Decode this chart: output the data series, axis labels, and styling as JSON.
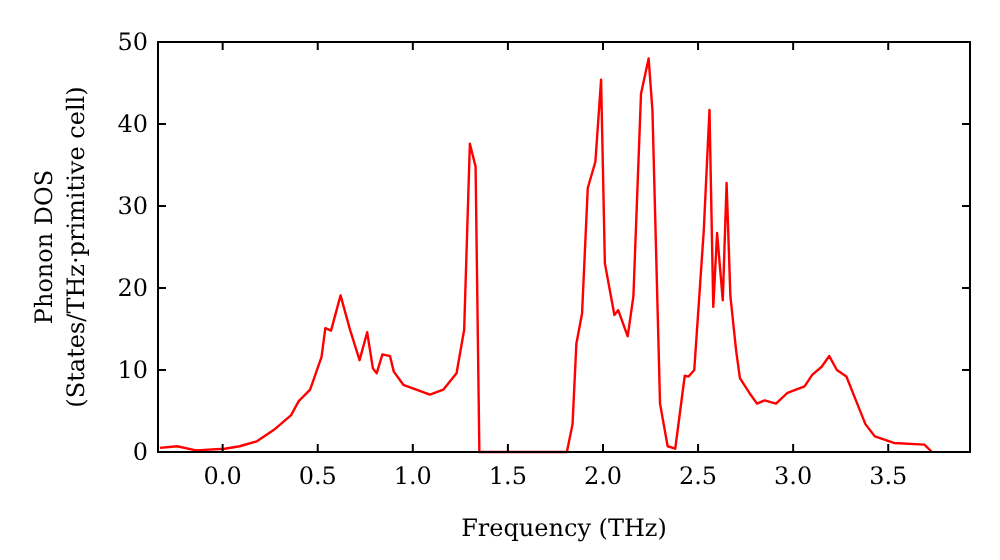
{
  "chart_data": {
    "type": "line",
    "xlabel": "Frequency (THz)",
    "ylabel": "Phonon DOS\n(States/THz·primitive cell)",
    "xlim": [
      -0.34,
      3.93
    ],
    "ylim": [
      0,
      50
    ],
    "xticks": [
      {
        "value": 0,
        "label": "0.0"
      },
      {
        "value": 0.5,
        "label": "0.5"
      },
      {
        "value": 1,
        "label": "1.0"
      },
      {
        "value": 1.5,
        "label": "1.5"
      },
      {
        "value": 2,
        "label": "2.0"
      },
      {
        "value": 2.5,
        "label": "2.5"
      },
      {
        "value": 3,
        "label": "3.0"
      },
      {
        "value": 3.5,
        "label": "3.5"
      }
    ],
    "yticks": [
      0,
      10,
      20,
      30,
      40,
      50
    ],
    "grid": false,
    "series": [
      {
        "color": "#ff0000",
        "x": [
          -0.33,
          -0.24,
          -0.14,
          0.01,
          0.09,
          0.18,
          0.27,
          0.36,
          0.4,
          0.46,
          0.52,
          0.54,
          0.57,
          0.62,
          0.67,
          0.72,
          0.76,
          0.79,
          0.81,
          0.84,
          0.88,
          0.9,
          0.95,
          1.09,
          1.16,
          1.23,
          1.27,
          1.3,
          1.33,
          1.35,
          1.81,
          1.84,
          1.86,
          1.89,
          1.92,
          1.96,
          1.99,
          2.01,
          2.06,
          2.08,
          2.13,
          2.16,
          2.2,
          2.24,
          2.26,
          2.3,
          2.34,
          2.38,
          2.43,
          2.45,
          2.48,
          2.51,
          2.53,
          2.56,
          2.58,
          2.6,
          2.63,
          2.65,
          2.67,
          2.7,
          2.72,
          2.77,
          2.81,
          2.85,
          2.91,
          2.97,
          3.06,
          3.1,
          3.15,
          3.19,
          3.23,
          3.28,
          3.33,
          3.38,
          3.43,
          3.53,
          3.69,
          3.73
        ],
        "values": [
          0.5,
          0.7,
          0.2,
          0.4,
          0.7,
          1.3,
          2.7,
          4.5,
          6.2,
          7.6,
          11.6,
          15.1,
          14.8,
          19.1,
          14.9,
          11.2,
          14.6,
          10.2,
          9.6,
          11.9,
          11.7,
          9.8,
          8.2,
          7,
          7.6,
          9.6,
          14.9,
          37.6,
          34.8,
          0,
          0,
          3.4,
          13.2,
          16.9,
          32.2,
          35.4,
          45.4,
          23,
          16.7,
          17.3,
          14.1,
          19,
          43.7,
          48,
          41.7,
          5.9,
          0.7,
          0.4,
          9.3,
          9.2,
          10,
          20.2,
          27,
          41.7,
          17.7,
          26.7,
          18.5,
          32.8,
          19,
          12.4,
          9,
          7.2,
          5.9,
          6.3,
          5.9,
          7.2,
          8,
          9.4,
          10.4,
          11.7,
          10,
          9.2,
          6.3,
          3.4,
          1.9,
          1.1,
          0.9,
          0
        ]
      }
    ]
  }
}
